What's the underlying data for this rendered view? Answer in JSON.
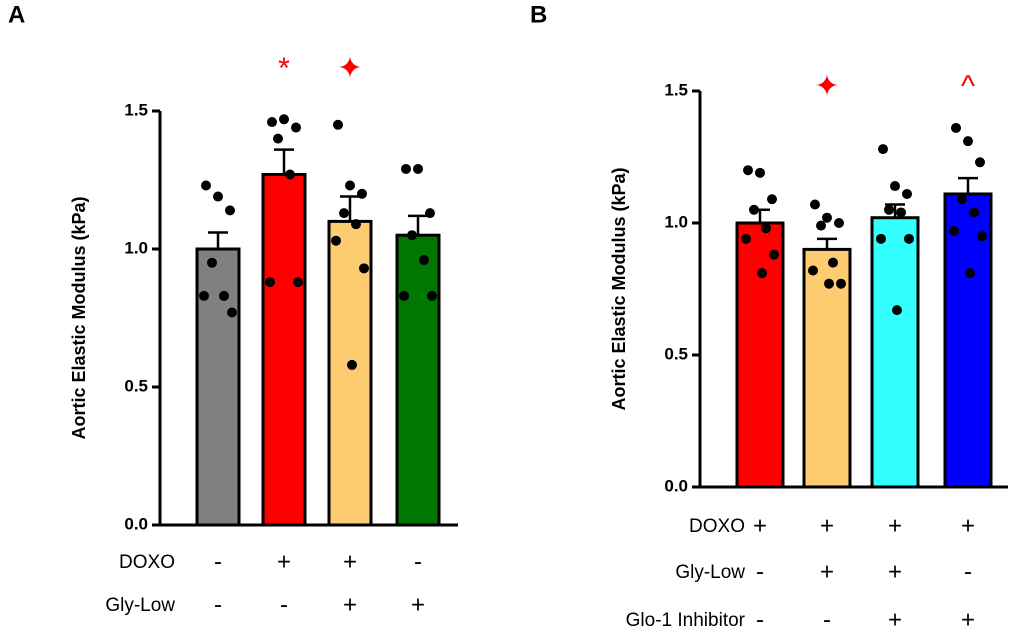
{
  "chart_data": [
    {
      "type": "bar",
      "panel": "A",
      "ylabel": "Aortic Elastic Modulus (kPa)",
      "ylim": [
        0,
        1.5
      ],
      "yticks": [
        {
          "value": 0,
          "label": "0.0"
        },
        {
          "value": 0.5,
          "label": "0.5"
        },
        {
          "value": 1,
          "label": "1.0"
        },
        {
          "value": 1.5,
          "label": "1.5"
        }
      ],
      "categories": [
        null,
        null,
        null,
        null
      ],
      "colors": [
        "#808080",
        "#ff0000",
        "#fdcc70",
        "#007700"
      ],
      "values": [
        1.0,
        1.27,
        1.1,
        1.05
      ],
      "errors": [
        0.06,
        0.09,
        0.09,
        0.07
      ],
      "points": [
        [
          1.23,
          1.19,
          1.14,
          0.95,
          0.83,
          0.83,
          0.77
        ],
        [
          1.46,
          1.47,
          1.44,
          1.4,
          1.27,
          0.88,
          0.88
        ],
        [
          1.45,
          1.23,
          1.2,
          1.13,
          1.09,
          1.03,
          0.93,
          0.58
        ],
        [
          1.29,
          1.29,
          1.13,
          1.05,
          0.96,
          0.83,
          0.83
        ]
      ],
      "annotations": [
        null,
        "*",
        "✦",
        null
      ],
      "treatments": [
        {
          "name": "DOXO",
          "levels": [
            "-",
            "+",
            "+",
            "-"
          ]
        },
        {
          "name": "Gly-Low",
          "levels": [
            "-",
            "-",
            "+",
            "+"
          ]
        }
      ]
    },
    {
      "type": "bar",
      "panel": "B",
      "ylabel": "Aortic Elastic Modulus (kPa)",
      "ylim": [
        0,
        1.5
      ],
      "yticks": [
        {
          "value": 0,
          "label": "0.0"
        },
        {
          "value": 0.5,
          "label": "0.5"
        },
        {
          "value": 1,
          "label": "1.0"
        },
        {
          "value": 1.5,
          "label": "1.5"
        }
      ],
      "categories": [
        null,
        null,
        null,
        null
      ],
      "colors": [
        "#ff0000",
        "#fdcc70",
        "#33ffff",
        "#0000ff"
      ],
      "values": [
        1.0,
        0.9,
        1.02,
        1.11
      ],
      "errors": [
        0.05,
        0.04,
        0.05,
        0.06
      ],
      "points": [
        [
          1.2,
          1.19,
          1.09,
          1.05,
          0.98,
          0.94,
          0.88,
          0.81
        ],
        [
          1.07,
          1.02,
          1.0,
          0.99,
          0.85,
          0.82,
          0.77,
          0.77
        ],
        [
          1.28,
          1.14,
          1.11,
          1.05,
          1.04,
          0.94,
          0.94,
          0.67
        ],
        [
          1.36,
          1.31,
          1.23,
          1.09,
          1.04,
          0.97,
          0.95,
          0.81
        ]
      ],
      "annotations": [
        null,
        "✦",
        null,
        "^"
      ],
      "treatments": [
        {
          "name": "DOXO",
          "levels": [
            "+",
            "+",
            "+",
            "+"
          ]
        },
        {
          "name": "Gly-Low",
          "levels": [
            "-",
            "+",
            "+",
            "-"
          ]
        },
        {
          "name": "Glo-1 Inhibitor",
          "levels": [
            "-",
            "-",
            "+",
            "+"
          ]
        }
      ]
    }
  ]
}
